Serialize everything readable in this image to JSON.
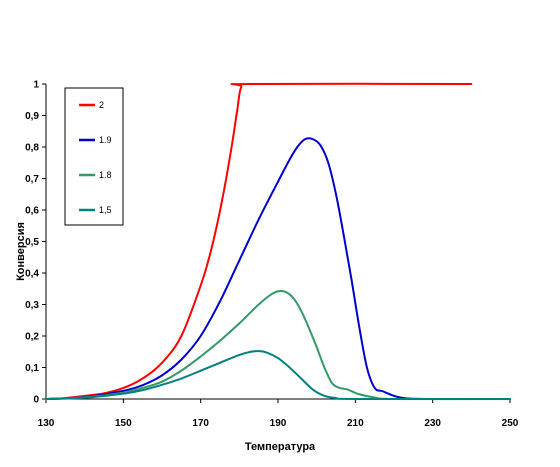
{
  "chart_data": {
    "type": "line",
    "title": "",
    "xlabel": "Температура",
    "ylabel": "Конверсия",
    "xlim": [
      130,
      250
    ],
    "ylim": [
      0,
      1
    ],
    "x_ticks": [
      130,
      150,
      170,
      190,
      210,
      230,
      250
    ],
    "x_tick_labels": [
      "130",
      "150",
      "170",
      "190",
      "210",
      "230",
      "250"
    ],
    "y_ticks": [
      0,
      0.1,
      0.2,
      0.3,
      0.4,
      0.5,
      0.6,
      0.7,
      0.8,
      0.9,
      1
    ],
    "y_tick_labels": [
      "0",
      "0,1",
      "0,2",
      "0,3",
      "0,4",
      "0,5",
      "0,6",
      "0,7",
      "0,8",
      "0,9",
      "1"
    ],
    "grid": false,
    "legend_position": "top-left",
    "series": [
      {
        "name": "2",
        "color": "#ff0000",
        "points": [
          [
            130,
            0.0
          ],
          [
            135,
            0.003
          ],
          [
            140,
            0.01
          ],
          [
            145,
            0.018
          ],
          [
            150,
            0.035
          ],
          [
            155,
            0.065
          ],
          [
            160,
            0.115
          ],
          [
            165,
            0.2
          ],
          [
            170,
            0.36
          ],
          [
            172,
            0.44
          ],
          [
            174,
            0.54
          ],
          [
            176,
            0.66
          ],
          [
            178,
            0.8
          ],
          [
            179.5,
            0.92
          ],
          [
            180.5,
            0.99
          ],
          [
            183,
            1.0
          ],
          [
            240,
            1.0
          ]
        ]
      },
      {
        "name": "1.9",
        "color": "#0000cc",
        "points": [
          [
            130,
            0.0
          ],
          [
            140,
            0.006
          ],
          [
            150,
            0.026
          ],
          [
            155,
            0.044
          ],
          [
            160,
            0.075
          ],
          [
            165,
            0.125
          ],
          [
            170,
            0.2
          ],
          [
            175,
            0.31
          ],
          [
            180,
            0.44
          ],
          [
            185,
            0.57
          ],
          [
            190,
            0.69
          ],
          [
            193,
            0.76
          ],
          [
            195,
            0.8
          ],
          [
            197,
            0.825
          ],
          [
            199,
            0.825
          ],
          [
            201,
            0.805
          ],
          [
            203,
            0.75
          ],
          [
            205,
            0.65
          ],
          [
            207,
            0.52
          ],
          [
            209,
            0.38
          ],
          [
            211,
            0.23
          ],
          [
            213,
            0.1
          ],
          [
            215,
            0.035
          ],
          [
            217,
            0.025
          ],
          [
            220,
            0.01
          ],
          [
            223,
            0.002
          ],
          [
            230,
            0.0
          ],
          [
            250,
            0.0
          ]
        ]
      },
      {
        "name": "1.8",
        "color": "#339966",
        "points": [
          [
            130,
            0.0
          ],
          [
            140,
            0.005
          ],
          [
            150,
            0.02
          ],
          [
            155,
            0.035
          ],
          [
            160,
            0.055
          ],
          [
            165,
            0.09
          ],
          [
            170,
            0.135
          ],
          [
            175,
            0.185
          ],
          [
            180,
            0.24
          ],
          [
            185,
            0.3
          ],
          [
            188,
            0.33
          ],
          [
            190,
            0.342
          ],
          [
            192,
            0.34
          ],
          [
            194,
            0.32
          ],
          [
            196,
            0.28
          ],
          [
            198,
            0.225
          ],
          [
            200,
            0.165
          ],
          [
            202,
            0.1
          ],
          [
            204,
            0.05
          ],
          [
            206,
            0.035
          ],
          [
            208,
            0.03
          ],
          [
            211,
            0.015
          ],
          [
            215,
            0.005
          ],
          [
            220,
            0.0
          ],
          [
            250,
            0.0
          ]
        ]
      },
      {
        "name": "1,5",
        "color": "#008080",
        "points": [
          [
            130,
            0.0
          ],
          [
            140,
            0.004
          ],
          [
            150,
            0.017
          ],
          [
            155,
            0.028
          ],
          [
            160,
            0.045
          ],
          [
            165,
            0.065
          ],
          [
            170,
            0.09
          ],
          [
            175,
            0.115
          ],
          [
            180,
            0.14
          ],
          [
            183,
            0.15
          ],
          [
            185,
            0.152
          ],
          [
            187,
            0.148
          ],
          [
            190,
            0.13
          ],
          [
            193,
            0.1
          ],
          [
            196,
            0.065
          ],
          [
            199,
            0.03
          ],
          [
            202,
            0.01
          ],
          [
            205,
            0.003
          ],
          [
            210,
            0.0
          ],
          [
            250,
            0.0
          ]
        ]
      }
    ]
  }
}
